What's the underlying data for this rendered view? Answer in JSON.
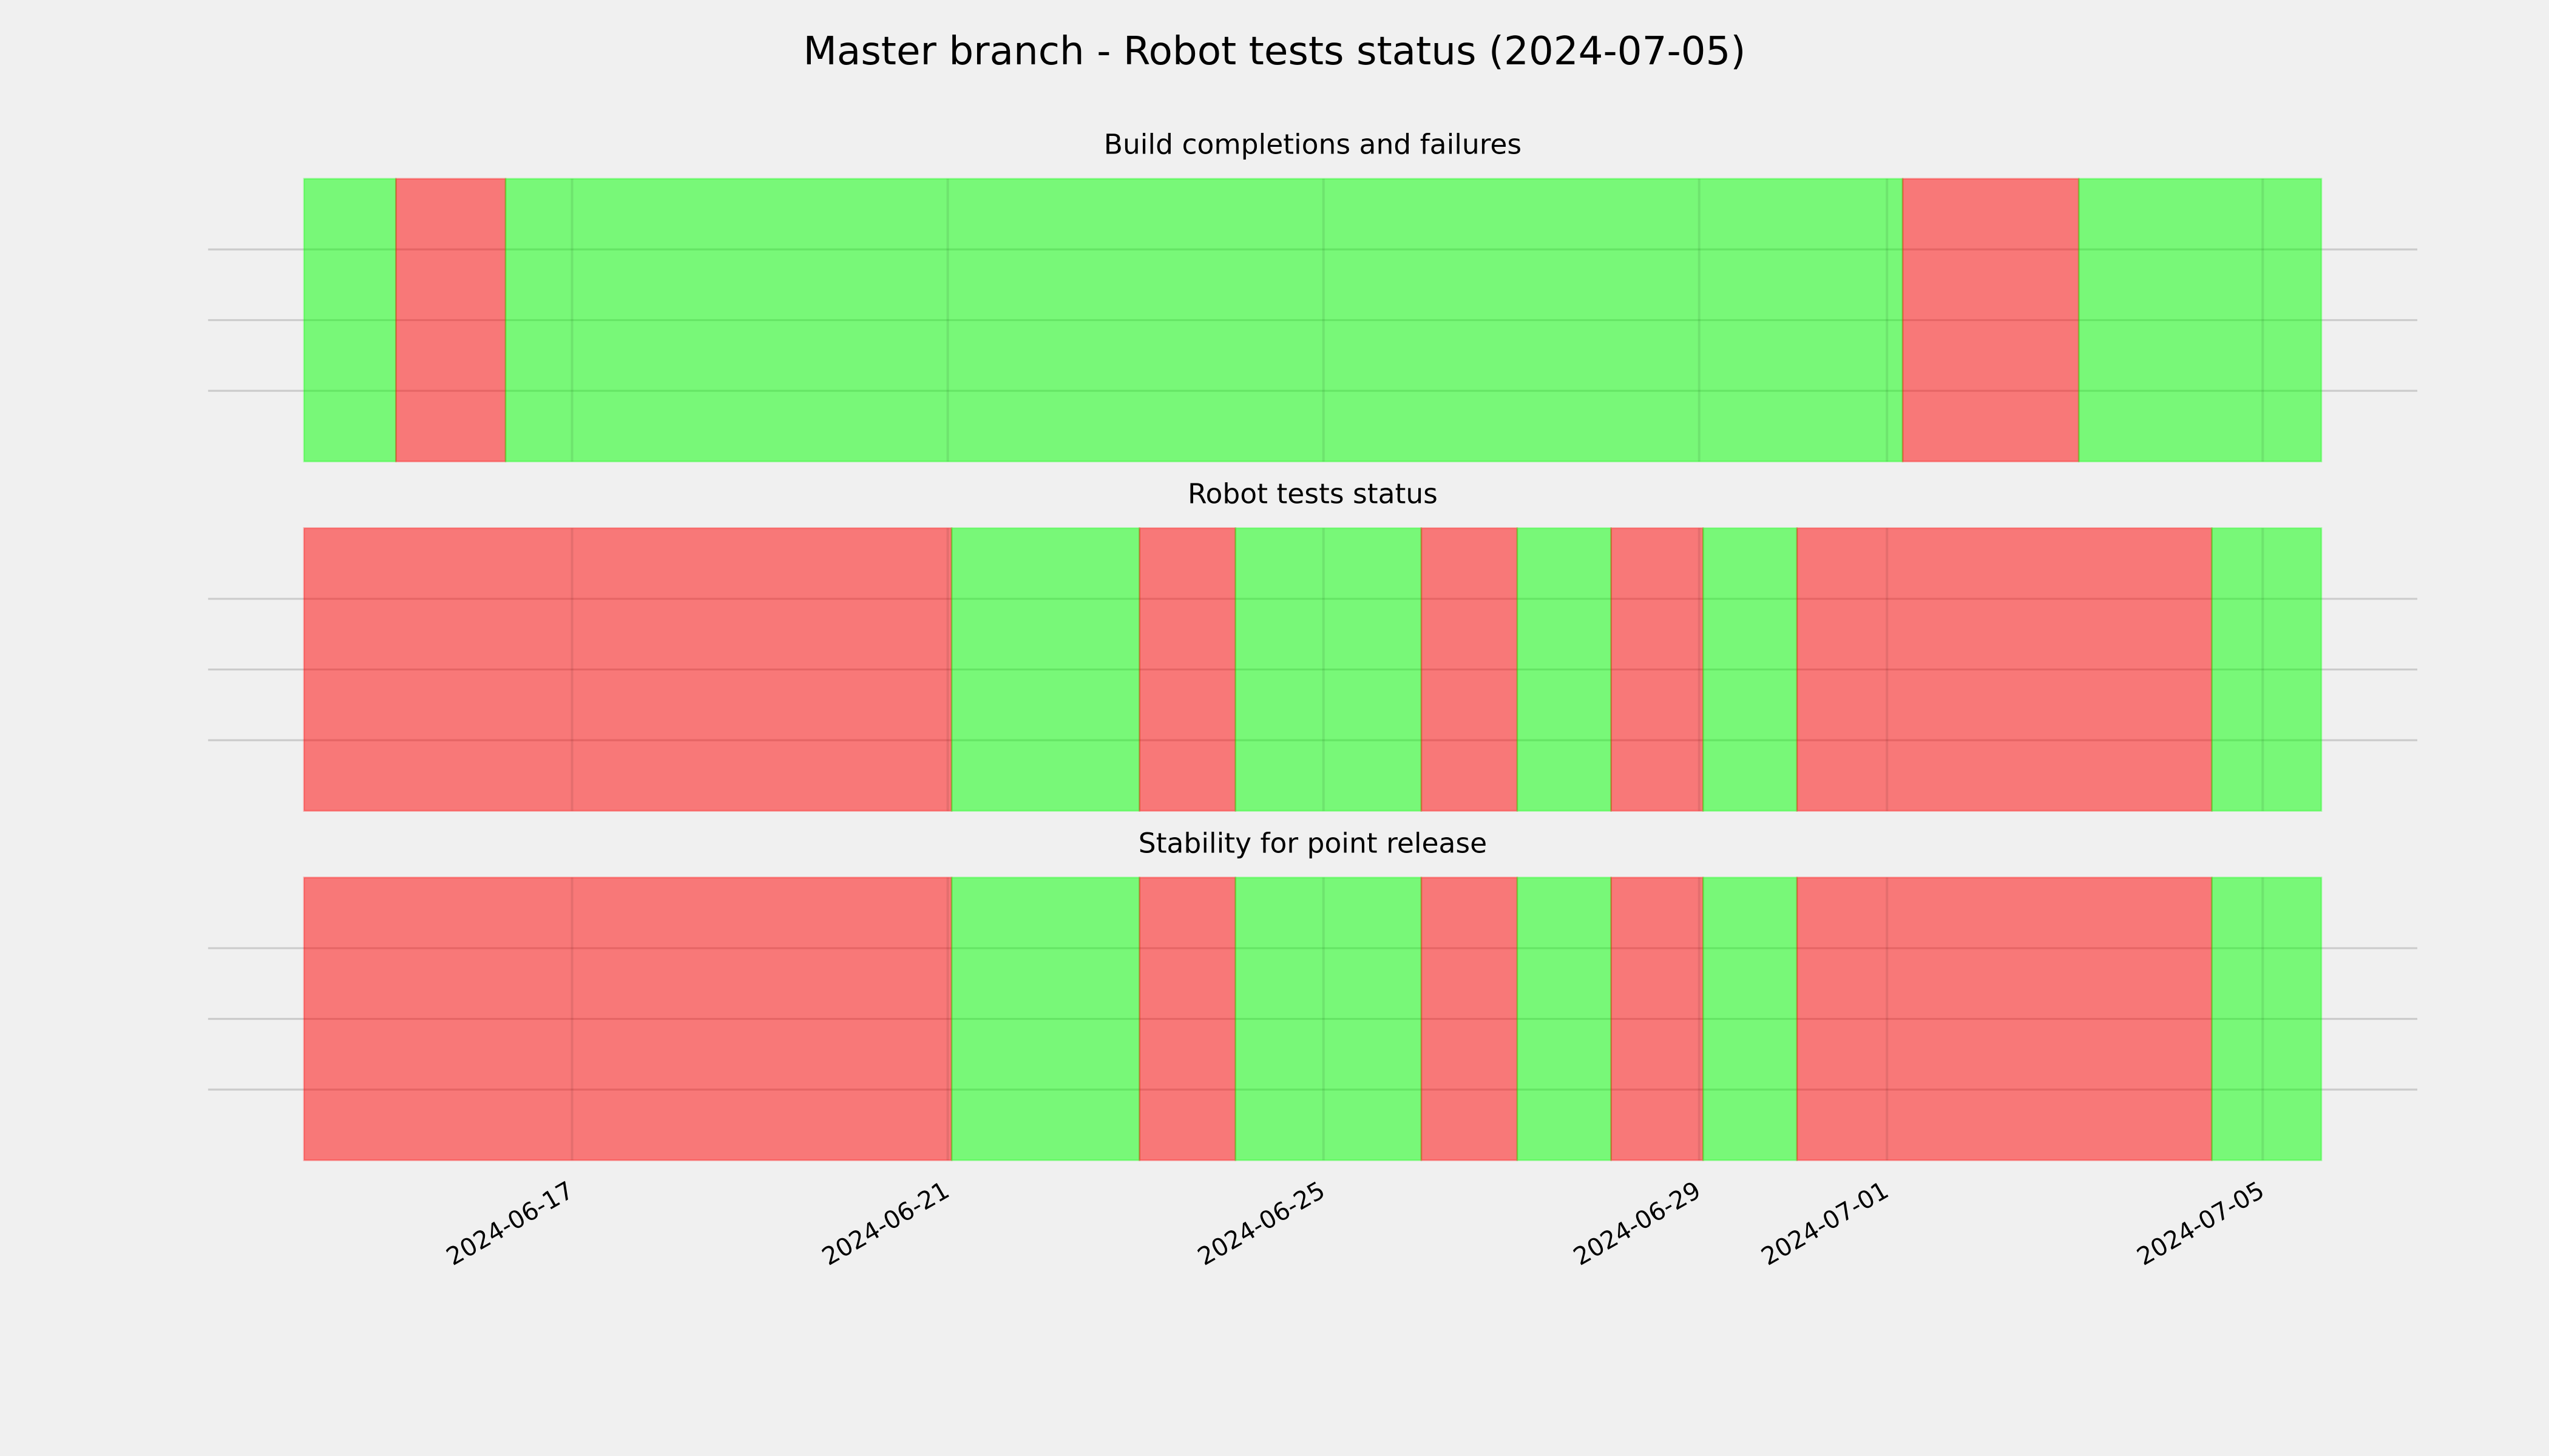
{
  "title": "Master branch - Robot tests status (2024-07-05)",
  "chart_data": [
    {
      "type": "timeline",
      "title": "Build completions and failures",
      "xlim": [
        "2024-06-14T03:30",
        "2024-07-05T15:00"
      ],
      "ylim": [
        0,
        1
      ],
      "yticks": [
        0.25,
        0.5,
        0.75
      ],
      "grid": true,
      "spans": [
        {
          "start": "2024-06-14T03:30",
          "end": "2024-06-15T03:00",
          "color": "#00ff00"
        },
        {
          "start": "2024-06-15T03:00",
          "end": "2024-06-16T07:00",
          "color": "#ff0000"
        },
        {
          "start": "2024-06-16T07:00",
          "end": "2024-07-01T04:00",
          "color": "#00ff00"
        },
        {
          "start": "2024-07-01T04:00",
          "end": "2024-07-03T01:00",
          "color": "#ff0000"
        },
        {
          "start": "2024-07-03T01:00",
          "end": "2024-07-05T15:00",
          "color": "#00ff00"
        }
      ]
    },
    {
      "type": "timeline",
      "title": "Robot tests status",
      "xlim": [
        "2024-06-14T03:30",
        "2024-07-05T15:00"
      ],
      "ylim": [
        0,
        1
      ],
      "yticks": [
        0.25,
        0.5,
        0.75
      ],
      "grid": true,
      "spans": [
        {
          "start": "2024-06-14T03:30",
          "end": "2024-06-21T01:00",
          "color": "#ff0000"
        },
        {
          "start": "2024-06-21T01:00",
          "end": "2024-06-23T01:00",
          "color": "#00ff00"
        },
        {
          "start": "2024-06-23T01:00",
          "end": "2024-06-24T01:30",
          "color": "#ff0000"
        },
        {
          "start": "2024-06-24T01:30",
          "end": "2024-06-26T01:00",
          "color": "#00ff00"
        },
        {
          "start": "2024-06-26T01:00",
          "end": "2024-06-27T01:30",
          "color": "#ff0000"
        },
        {
          "start": "2024-06-27T01:30",
          "end": "2024-06-28T01:30",
          "color": "#00ff00"
        },
        {
          "start": "2024-06-28T01:30",
          "end": "2024-06-29T01:00",
          "color": "#ff0000"
        },
        {
          "start": "2024-06-29T01:00",
          "end": "2024-06-30T01:00",
          "color": "#00ff00"
        },
        {
          "start": "2024-06-30T01:00",
          "end": "2024-07-04T11:00",
          "color": "#ff0000"
        },
        {
          "start": "2024-07-04T11:00",
          "end": "2024-07-05T15:00",
          "color": "#00ff00"
        }
      ]
    },
    {
      "type": "timeline",
      "title": "Stability for point release",
      "xlim": [
        "2024-06-14T03:30",
        "2024-07-05T15:00"
      ],
      "ylim": [
        0,
        1
      ],
      "yticks": [
        0.25,
        0.5,
        0.75
      ],
      "grid": true,
      "xticks": [
        "2024-06-17",
        "2024-06-21",
        "2024-06-25",
        "2024-06-29",
        "2024-07-01",
        "2024-07-05"
      ],
      "spans": [
        {
          "start": "2024-06-14T03:30",
          "end": "2024-06-21T01:00",
          "color": "#ff0000"
        },
        {
          "start": "2024-06-21T01:00",
          "end": "2024-06-23T01:00",
          "color": "#00ff00"
        },
        {
          "start": "2024-06-23T01:00",
          "end": "2024-06-24T01:30",
          "color": "#ff0000"
        },
        {
          "start": "2024-06-24T01:30",
          "end": "2024-06-26T01:00",
          "color": "#00ff00"
        },
        {
          "start": "2024-06-26T01:00",
          "end": "2024-06-27T01:30",
          "color": "#ff0000"
        },
        {
          "start": "2024-06-27T01:30",
          "end": "2024-06-28T01:30",
          "color": "#00ff00"
        },
        {
          "start": "2024-06-28T01:30",
          "end": "2024-06-29T01:00",
          "color": "#ff0000"
        },
        {
          "start": "2024-06-29T01:00",
          "end": "2024-06-30T01:00",
          "color": "#00ff00"
        },
        {
          "start": "2024-06-30T01:00",
          "end": "2024-07-04T11:00",
          "color": "#ff0000"
        },
        {
          "start": "2024-07-04T11:00",
          "end": "2024-07-05T15:00",
          "color": "#00ff00"
        }
      ]
    }
  ]
}
